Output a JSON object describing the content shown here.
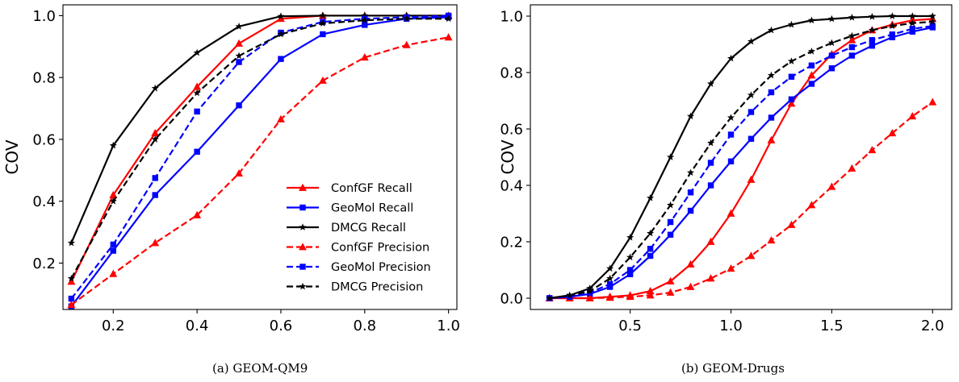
{
  "chart_data": [
    {
      "type": "line",
      "caption": "(a)  GEOM-QM9",
      "ylabel": "COV",
      "xlabel": "",
      "xlim": [
        0.08,
        1.02
      ],
      "ylim": [
        0.05,
        1.035
      ],
      "xticks": [
        0.2,
        0.4,
        0.6,
        0.8,
        1.0
      ],
      "xtick_labels": [
        "0.2",
        "0.4",
        "0.6",
        "0.8",
        "1.0"
      ],
      "yticks": [
        0.2,
        0.4,
        0.6,
        0.8,
        1.0
      ],
      "ytick_labels": [
        "0.2",
        "0.4",
        "0.6",
        "0.8",
        "1.0"
      ],
      "grid": false,
      "legend": "lower-right",
      "series": [
        {
          "name": "ConfGF Recall",
          "color": "#ff0000",
          "dash": "solid",
          "marker": "triangle",
          "x": [
            0.1,
            0.2,
            0.3,
            0.4,
            0.5,
            0.6,
            0.7,
            0.8,
            0.9,
            1.0
          ],
          "values": [
            0.14,
            0.42,
            0.62,
            0.77,
            0.91,
            0.99,
            1.0,
            1.0,
            1.0,
            1.0
          ]
        },
        {
          "name": "GeoMol Recall",
          "color": "#0000ff",
          "dash": "solid",
          "marker": "square",
          "x": [
            0.1,
            0.2,
            0.3,
            0.4,
            0.5,
            0.6,
            0.7,
            0.8,
            0.9,
            1.0
          ],
          "values": [
            0.06,
            0.24,
            0.42,
            0.56,
            0.71,
            0.86,
            0.94,
            0.97,
            0.99,
            0.995
          ]
        },
        {
          "name": "DMCG Recall",
          "color": "#000000",
          "dash": "solid",
          "marker": "star",
          "x": [
            0.1,
            0.2,
            0.3,
            0.4,
            0.5,
            0.6,
            0.7,
            0.8,
            0.9,
            1.0
          ],
          "values": [
            0.265,
            0.58,
            0.765,
            0.88,
            0.965,
            0.998,
            1.0,
            1.0,
            1.0,
            1.0
          ]
        },
        {
          "name": "ConfGF Precision",
          "color": "#ff0000",
          "dash": "dashed",
          "marker": "triangle",
          "x": [
            0.1,
            0.2,
            0.3,
            0.4,
            0.5,
            0.6,
            0.7,
            0.8,
            0.9,
            1.0
          ],
          "values": [
            0.065,
            0.165,
            0.265,
            0.355,
            0.49,
            0.665,
            0.79,
            0.865,
            0.905,
            0.93
          ]
        },
        {
          "name": "GeoMol Precision",
          "color": "#0000ff",
          "dash": "dashed",
          "marker": "square",
          "x": [
            0.1,
            0.2,
            0.3,
            0.4,
            0.5,
            0.6,
            0.7,
            0.8,
            0.9,
            1.0
          ],
          "values": [
            0.085,
            0.26,
            0.475,
            0.69,
            0.85,
            0.945,
            0.98,
            0.99,
            0.995,
            1.0
          ]
        },
        {
          "name": "DMCG Precision",
          "color": "#000000",
          "dash": "dashed",
          "marker": "star",
          "x": [
            0.1,
            0.2,
            0.3,
            0.4,
            0.5,
            0.6,
            0.7,
            0.8,
            0.9,
            1.0
          ],
          "values": [
            0.15,
            0.4,
            0.6,
            0.75,
            0.87,
            0.94,
            0.975,
            0.985,
            0.99,
            0.99
          ]
        }
      ]
    },
    {
      "type": "line",
      "caption": "(b)  GEOM-Drugs",
      "ylabel": "COV",
      "xlabel": "",
      "xlim": [
        0.005,
        2.095
      ],
      "ylim": [
        -0.04,
        1.04
      ],
      "xticks": [
        0.5,
        1.0,
        1.5,
        2.0
      ],
      "xtick_labels": [
        "0.5",
        "1.0",
        "1.5",
        "2.0"
      ],
      "yticks": [
        0.0,
        0.2,
        0.4,
        0.6,
        0.8,
        1.0
      ],
      "ytick_labels": [
        "0.0",
        "0.2",
        "0.4",
        "0.6",
        "0.8",
        "1.0"
      ],
      "grid": false,
      "legend": "none",
      "series": [
        {
          "name": "ConfGF Recall",
          "color": "#ff0000",
          "dash": "solid",
          "marker": "triangle",
          "x": [
            0.1,
            0.2,
            0.3,
            0.4,
            0.5,
            0.6,
            0.7,
            0.8,
            0.9,
            1.0,
            1.1,
            1.2,
            1.3,
            1.4,
            1.5,
            1.6,
            1.7,
            1.8,
            1.9,
            2.0
          ],
          "values": [
            0.0,
            0.0,
            0.0,
            0.005,
            0.01,
            0.025,
            0.06,
            0.12,
            0.2,
            0.3,
            0.42,
            0.56,
            0.69,
            0.79,
            0.865,
            0.915,
            0.95,
            0.97,
            0.985,
            0.99
          ]
        },
        {
          "name": "GeoMol Recall",
          "color": "#0000ff",
          "dash": "solid",
          "marker": "square",
          "x": [
            0.1,
            0.2,
            0.3,
            0.4,
            0.5,
            0.6,
            0.7,
            0.8,
            0.9,
            1.0,
            1.1,
            1.2,
            1.3,
            1.4,
            1.5,
            1.6,
            1.7,
            1.8,
            1.9,
            2.0
          ],
          "values": [
            0.0,
            0.005,
            0.015,
            0.04,
            0.085,
            0.15,
            0.225,
            0.31,
            0.4,
            0.485,
            0.565,
            0.64,
            0.705,
            0.76,
            0.815,
            0.86,
            0.895,
            0.925,
            0.945,
            0.96
          ]
        },
        {
          "name": "DMCG Recall",
          "color": "#000000",
          "dash": "solid",
          "marker": "star",
          "x": [
            0.1,
            0.2,
            0.3,
            0.4,
            0.5,
            0.6,
            0.7,
            0.8,
            0.9,
            1.0,
            1.1,
            1.2,
            1.3,
            1.4,
            1.5,
            1.6,
            1.7,
            1.8,
            1.9,
            2.0
          ],
          "values": [
            0.0,
            0.01,
            0.035,
            0.105,
            0.215,
            0.355,
            0.5,
            0.645,
            0.76,
            0.85,
            0.91,
            0.95,
            0.97,
            0.985,
            0.99,
            0.995,
            0.998,
            1.0,
            1.0,
            1.0
          ]
        },
        {
          "name": "ConfGF Precision",
          "color": "#ff0000",
          "dash": "dashed",
          "marker": "triangle",
          "x": [
            0.1,
            0.2,
            0.3,
            0.4,
            0.5,
            0.6,
            0.7,
            0.8,
            0.9,
            1.0,
            1.1,
            1.2,
            1.3,
            1.4,
            1.5,
            1.6,
            1.7,
            1.8,
            1.9,
            2.0
          ],
          "values": [
            0.0,
            0.0,
            0.0,
            0.002,
            0.005,
            0.01,
            0.02,
            0.04,
            0.07,
            0.105,
            0.15,
            0.205,
            0.26,
            0.33,
            0.395,
            0.46,
            0.525,
            0.585,
            0.645,
            0.695
          ]
        },
        {
          "name": "GeoMol Precision",
          "color": "#0000ff",
          "dash": "dashed",
          "marker": "square",
          "x": [
            0.1,
            0.2,
            0.3,
            0.4,
            0.5,
            0.6,
            0.7,
            0.8,
            0.9,
            1.0,
            1.1,
            1.2,
            1.3,
            1.4,
            1.5,
            1.6,
            1.7,
            1.8,
            1.9,
            2.0
          ],
          "values": [
            0.0,
            0.005,
            0.02,
            0.05,
            0.1,
            0.175,
            0.27,
            0.375,
            0.48,
            0.58,
            0.66,
            0.73,
            0.785,
            0.825,
            0.86,
            0.89,
            0.915,
            0.935,
            0.955,
            0.965
          ]
        },
        {
          "name": "DMCG Precision",
          "color": "#000000",
          "dash": "dashed",
          "marker": "star",
          "x": [
            0.1,
            0.2,
            0.3,
            0.4,
            0.5,
            0.6,
            0.7,
            0.8,
            0.9,
            1.0,
            1.1,
            1.2,
            1.3,
            1.4,
            1.5,
            1.6,
            1.7,
            1.8,
            1.9,
            2.0
          ],
          "values": [
            0.0,
            0.01,
            0.025,
            0.07,
            0.145,
            0.23,
            0.33,
            0.445,
            0.55,
            0.64,
            0.72,
            0.79,
            0.84,
            0.875,
            0.905,
            0.93,
            0.95,
            0.965,
            0.975,
            0.98
          ]
        }
      ]
    }
  ]
}
